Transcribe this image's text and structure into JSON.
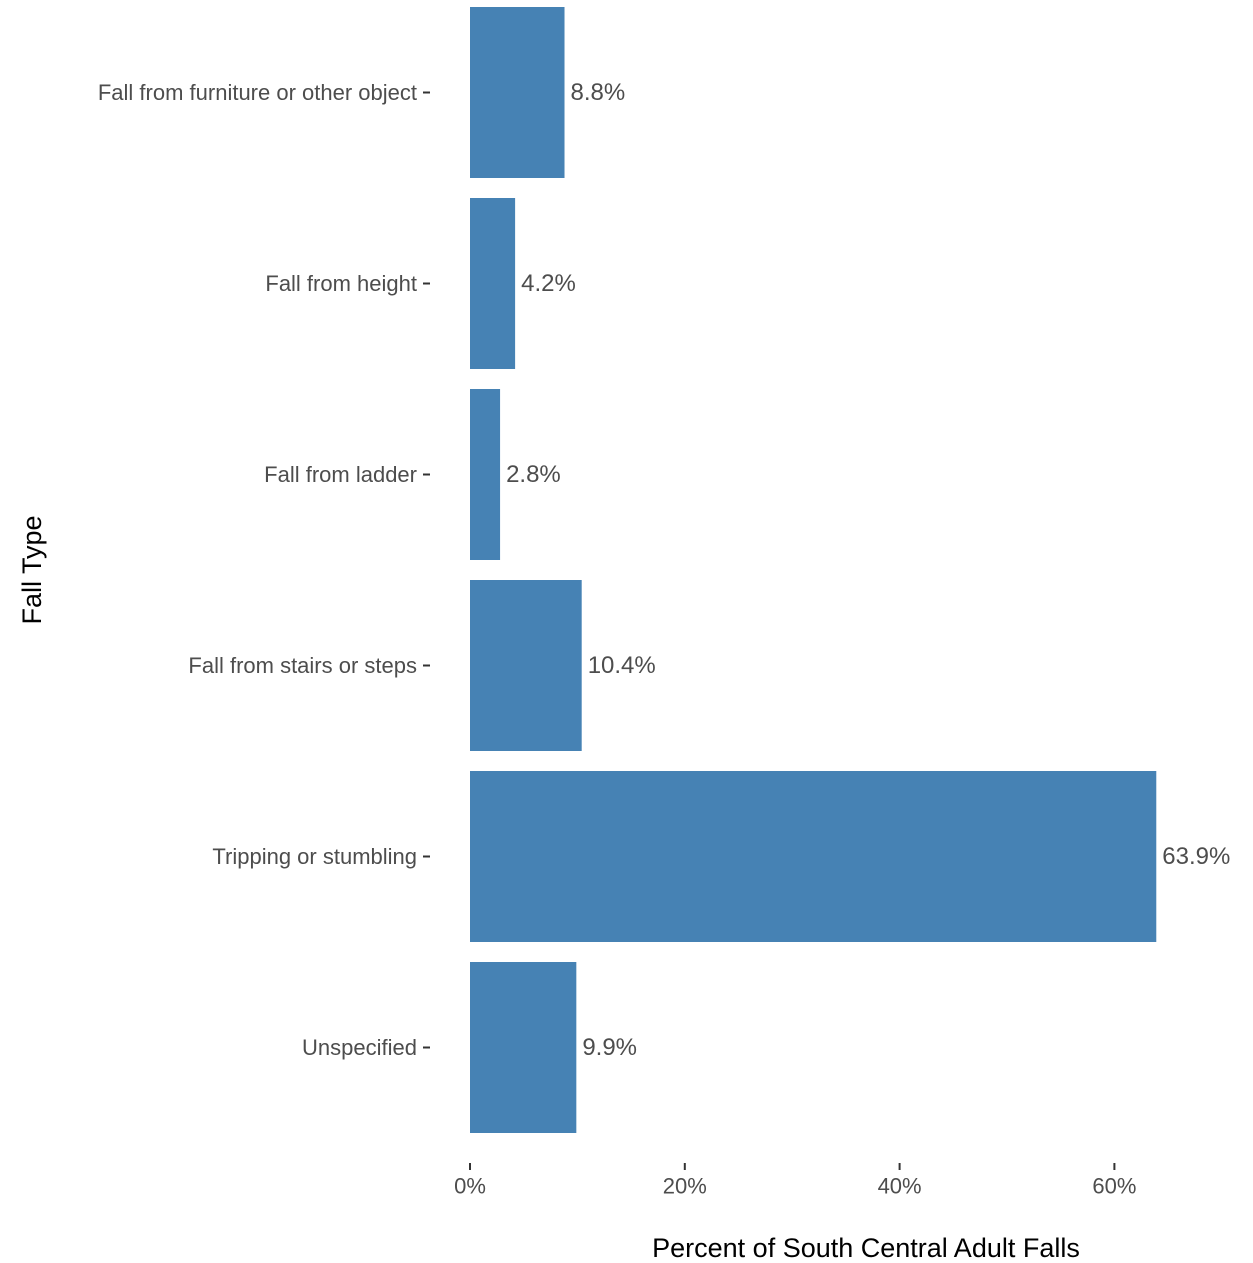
{
  "chart_data": {
    "type": "bar",
    "orientation": "horizontal",
    "categories": [
      "Fall from furniture or other object",
      "Fall from height",
      "Fall from ladder",
      "Fall from stairs or steps",
      "Tripping or stumbling",
      "Unspecified"
    ],
    "values": [
      8.8,
      4.2,
      2.8,
      10.4,
      63.9,
      9.9
    ],
    "data_labels": [
      "8.8%",
      "4.2%",
      "2.8%",
      "10.4%",
      "63.9%",
      "9.9%"
    ],
    "xlabel": "Percent of South Central Adult Falls",
    "ylabel": "Fall Type",
    "xlim": [
      0,
      66
    ],
    "x_ticks": [
      0,
      20,
      40,
      60
    ],
    "x_tick_labels": [
      "0%",
      "20%",
      "40%",
      "60%"
    ],
    "grid": false,
    "legend": "none",
    "bar_color": "#4682b4"
  }
}
